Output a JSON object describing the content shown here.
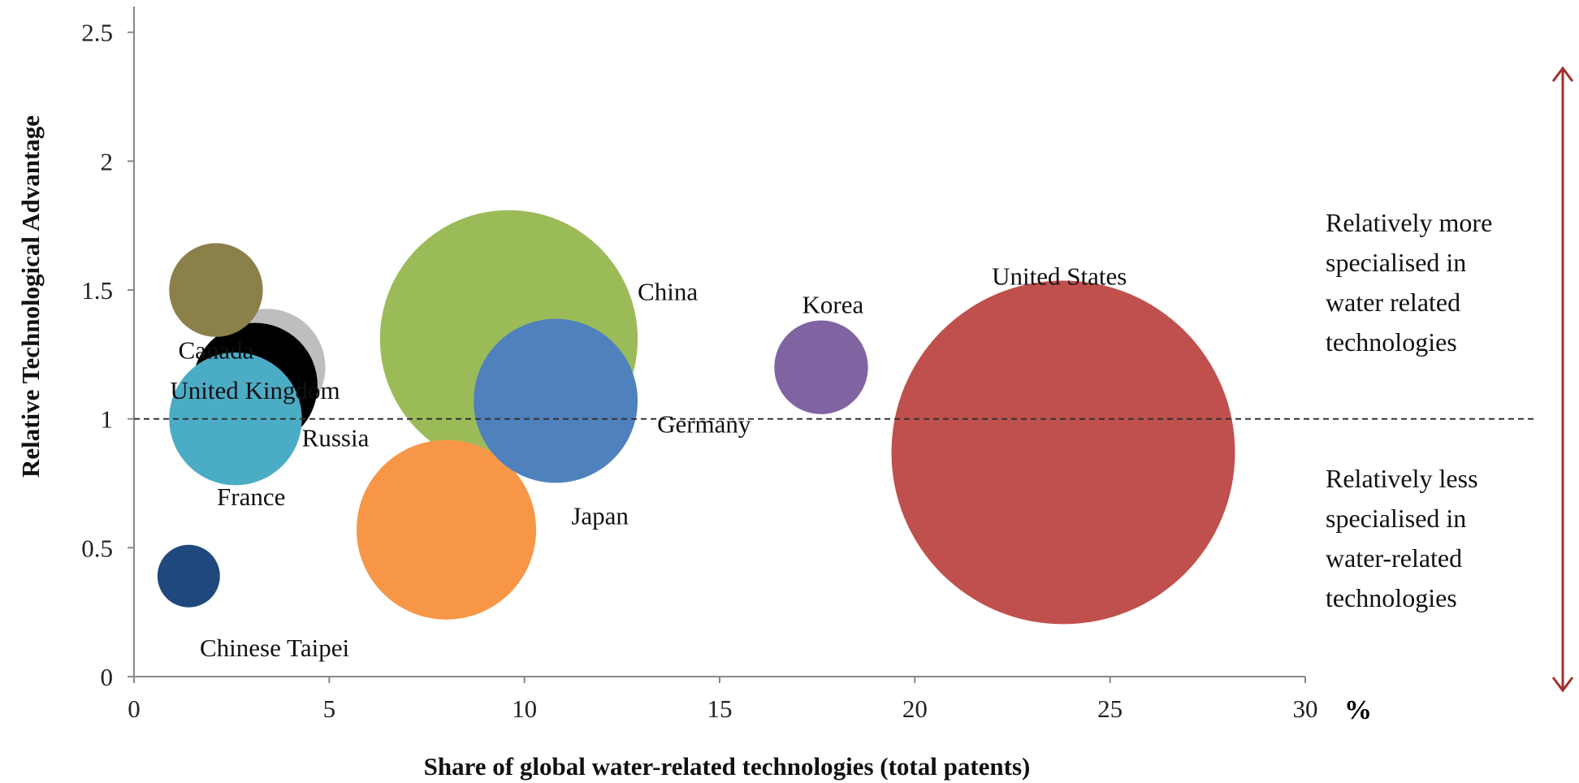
{
  "chart_data": {
    "type": "bubble",
    "xlabel": "Share of global water-related technologies (total patents)",
    "x_unit": "%",
    "ylabel": "Relative Technological Advantage",
    "xlim": [
      0,
      30
    ],
    "ylim": [
      0,
      2.6
    ],
    "x_ticks": [
      "0",
      "5",
      "10",
      "15",
      "20",
      "25",
      "30"
    ],
    "y_ticks": [
      "0",
      "0.5",
      "1",
      "1.5",
      "2",
      "2.5"
    ],
    "reference_line": {
      "y": 1,
      "style": "dashed"
    },
    "annotations": {
      "above": [
        "Relatively more",
        "specialised in",
        "water related",
        "technologies"
      ],
      "below": [
        "Relatively less",
        "specialised in",
        "water-related",
        "technologies"
      ]
    },
    "series": [
      {
        "name": "Canada",
        "x": 2.1,
        "y": 1.5,
        "r_x": 1.2,
        "color": "#8B7F4A"
      },
      {
        "name": "United Kingdom",
        "x": 3.4,
        "y": 1.2,
        "r_x": 1.5,
        "color": "#BEBEBE"
      },
      {
        "name": "Russia",
        "x": 3.1,
        "y": 1.13,
        "r_x": 1.6,
        "color": "#000000"
      },
      {
        "name": "France",
        "x": 2.6,
        "y": 1.0,
        "r_x": 1.7,
        "color": "#4BACC6"
      },
      {
        "name": "Chinese Taipei",
        "x": 1.4,
        "y": 0.39,
        "r_x": 0.8,
        "color": "#1F497D"
      },
      {
        "name": "China",
        "x": 9.6,
        "y": 1.31,
        "r_x": 3.3,
        "color": "#9BBB59"
      },
      {
        "name": "Germany",
        "x": 10.8,
        "y": 1.07,
        "r_x": 2.1,
        "color": "#4F81BD"
      },
      {
        "name": "Japan",
        "x": 8.0,
        "y": 0.57,
        "r_x": 2.3,
        "color": "#F79646"
      },
      {
        "name": "Korea",
        "x": 17.6,
        "y": 1.2,
        "r_x": 1.2,
        "color": "#8064A2"
      },
      {
        "name": "United States",
        "x": 23.8,
        "y": 0.87,
        "r_x": 4.4,
        "color": "#C0504D"
      }
    ]
  },
  "colors": {
    "arrow": "#A0302C",
    "axis": "#888888",
    "refline": "#333333"
  }
}
